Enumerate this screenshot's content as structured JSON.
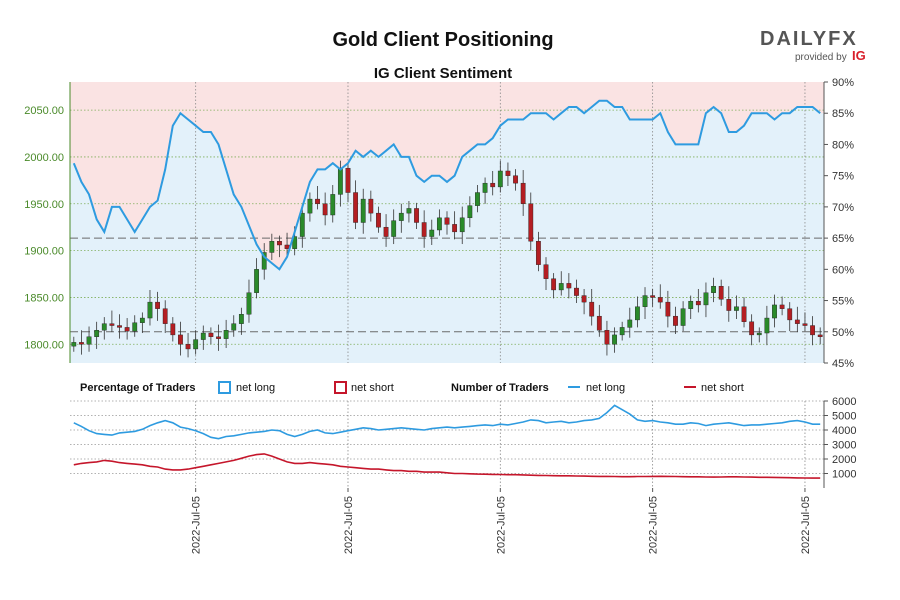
{
  "title": "Gold Client Positioning",
  "subtitle": "IG Client Sentiment",
  "logo": {
    "main": "DAILYFX",
    "sub": "provided by",
    "brand": "IG"
  },
  "colors": {
    "net_long": "#2e9be0",
    "net_short": "#c5162b",
    "candle_up": "#2a8a2a",
    "candle_down": "#b41e22",
    "price_axis": "#4a8a2a",
    "long_fill": "#e3f1fa",
    "short_fill": "#fae3e3"
  },
  "legend": {
    "pct_title": "Percentage of Traders",
    "num_title": "Number of Traders",
    "net_long": "net long",
    "net_short": "net short"
  },
  "chart_data": [
    {
      "type": "candlestick",
      "title": "IG Client Sentiment",
      "price_axis": {
        "ylim": [
          1780,
          2080
        ],
        "ticks": [
          "1800.00",
          "1850.00",
          "1900.00",
          "1950.00",
          "2000.00",
          "2050.00"
        ]
      },
      "pct_axis": {
        "ylim": [
          45,
          90
        ],
        "ticks": [
          "45%",
          "50%",
          "55%",
          "60%",
          "65%",
          "70%",
          "75%",
          "80%",
          "85%",
          "90%"
        ]
      },
      "reference_lines_pct": [
        50,
        65
      ],
      "x_ticks": [
        "2022-Jul-05",
        "2022-Jul-05",
        "2022-Jul-05",
        "2022-Jul-05",
        "2022-Jul-05",
        "2022-Jul-05"
      ],
      "x_tick_index": [
        16,
        36,
        56,
        76,
        96,
        116
      ],
      "grid": true,
      "close": [
        1802,
        1800,
        1808,
        1815,
        1822,
        1820,
        1818,
        1814,
        1823,
        1828,
        1845,
        1838,
        1822,
        1810,
        1800,
        1795,
        1805,
        1812,
        1808,
        1806,
        1815,
        1822,
        1832,
        1855,
        1880,
        1898,
        1910,
        1906,
        1902,
        1915,
        1940,
        1955,
        1950,
        1938,
        1960,
        1988,
        1962,
        1930,
        1955,
        1940,
        1925,
        1915,
        1932,
        1940,
        1945,
        1930,
        1915,
        1922,
        1935,
        1928,
        1920,
        1935,
        1948,
        1962,
        1972,
        1968,
        1985,
        1980,
        1972,
        1950,
        1910,
        1885,
        1870,
        1858,
        1865,
        1860,
        1852,
        1845,
        1830,
        1815,
        1800,
        1810,
        1818,
        1826,
        1840,
        1852,
        1850,
        1845,
        1830,
        1820,
        1838,
        1846,
        1842,
        1855,
        1862,
        1848,
        1836,
        1840,
        1824,
        1810,
        1812,
        1828,
        1842,
        1838,
        1826,
        1822,
        1820,
        1810,
        1808
      ],
      "net_long_pct": [
        77,
        74,
        72,
        68,
        66,
        70,
        70,
        68,
        66,
        68,
        70,
        71,
        76,
        83,
        85,
        84,
        83,
        82,
        82,
        80,
        76,
        72,
        70,
        67,
        64,
        62,
        61,
        60,
        62,
        66,
        70,
        74,
        76,
        76,
        77,
        76,
        77,
        79,
        78,
        79,
        78,
        79,
        80,
        78,
        78,
        75,
        74,
        75,
        75,
        74,
        75,
        78,
        79,
        80,
        80,
        81,
        83,
        84,
        84,
        84,
        85,
        85,
        85,
        84,
        85,
        86,
        86,
        85,
        86,
        87,
        87,
        86,
        86,
        84,
        84,
        84,
        84,
        85,
        82,
        80,
        80,
        80,
        80,
        85,
        86,
        85,
        82,
        82,
        83,
        85,
        85,
        85,
        84,
        85,
        85,
        86,
        86,
        86,
        85
      ],
      "net_long_traders": [
        4500,
        4250,
        3950,
        3750,
        3700,
        3650,
        3800,
        3850,
        3900,
        4050,
        4300,
        4500,
        4650,
        4500,
        4200,
        4100,
        3950,
        3750,
        3500,
        3400,
        3550,
        3600,
        3700,
        3800,
        3850,
        3900,
        4000,
        3950,
        3700,
        3550,
        3700,
        3900,
        4000,
        3800,
        3750,
        3850,
        3950,
        4050,
        4150,
        4100,
        4000,
        4050,
        4100,
        4150,
        4100,
        4050,
        4000,
        4100,
        4150,
        4200,
        4150,
        4200,
        4250,
        4300,
        4350,
        4300,
        4400,
        4350,
        4450,
        4550,
        4700,
        4650,
        4500,
        4550,
        4600,
        4500,
        4550,
        4650,
        4700,
        4800,
        5200,
        5700,
        5400,
        5100,
        4700,
        4600,
        4650,
        4550,
        4500,
        4400,
        4400,
        4500,
        4450,
        4300,
        4400,
        4450,
        4500,
        4400,
        4300,
        4350,
        4350,
        4400,
        4450,
        4500,
        4600,
        4650,
        4550,
        4400,
        4400
      ],
      "net_short_traders": [
        1600,
        1700,
        1750,
        1800,
        1900,
        1850,
        1750,
        1700,
        1650,
        1600,
        1500,
        1450,
        1300,
        1250,
        1250,
        1300,
        1400,
        1500,
        1600,
        1700,
        1800,
        1900,
        2050,
        2200,
        2300,
        2350,
        2200,
        2000,
        1800,
        1700,
        1700,
        1750,
        1700,
        1650,
        1600,
        1500,
        1450,
        1400,
        1350,
        1300,
        1300,
        1250,
        1200,
        1200,
        1150,
        1150,
        1100,
        1100,
        1100,
        1050,
        1000,
        1000,
        980,
        960,
        950,
        940,
        930,
        920,
        920,
        900,
        880,
        870,
        860,
        850,
        840,
        840,
        830,
        820,
        810,
        800,
        800,
        790,
        780,
        780,
        790,
        790,
        800,
        810,
        800,
        790,
        780,
        770,
        770,
        760,
        750,
        760,
        770,
        770,
        760,
        750,
        740,
        740,
        730,
        720,
        710,
        700,
        690,
        680,
        680
      ]
    },
    {
      "type": "line",
      "title": "Number of Traders",
      "ylim": [
        0,
        6000
      ],
      "y_ticks": [
        "1000",
        "2000",
        "3000",
        "4000",
        "5000",
        "6000"
      ],
      "series": [
        {
          "name": "net long",
          "source": "net_long_traders"
        },
        {
          "name": "net short",
          "source": "net_short_traders"
        }
      ]
    }
  ]
}
